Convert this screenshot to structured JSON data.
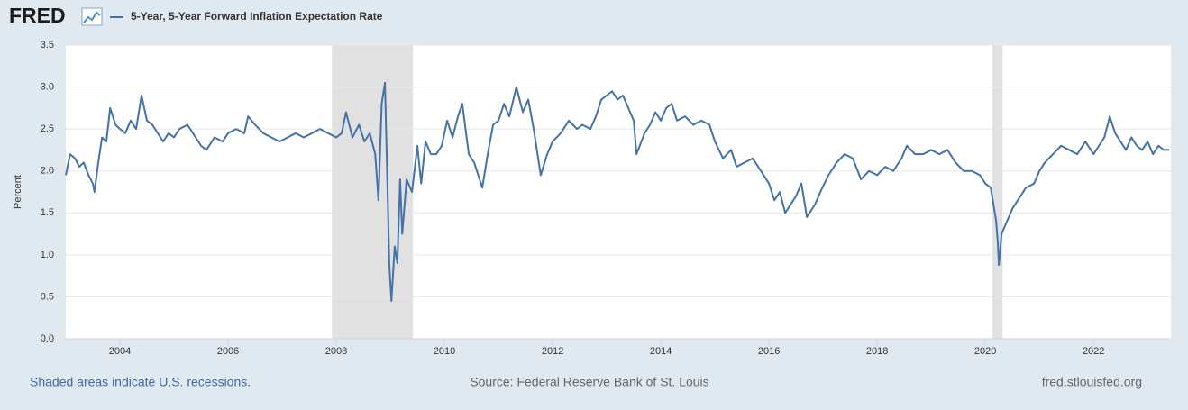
{
  "logo": "FRED",
  "footer": {
    "note": "Shaded areas indicate U.S. recessions.",
    "source": "Source: Federal Reserve Bank of St. Louis",
    "site": "fred.stlouisfed.org"
  },
  "chart_data": {
    "type": "line",
    "ylabel": "Percent",
    "grid": true,
    "recessions": [
      [
        2007.92,
        2009.42
      ],
      [
        2020.13,
        2020.32
      ]
    ],
    "xlim": [
      2003.0,
      2023.43
    ],
    "xticks": [
      2004,
      2006,
      2008,
      2010,
      2012,
      2014,
      2016,
      2018,
      2020,
      2022
    ],
    "ylim": [
      0,
      3.5
    ],
    "yticks": [
      {
        "value": 0,
        "label": "0.0"
      },
      0.5,
      {
        "value": 1,
        "label": "1.0"
      },
      1.5,
      {
        "value": 2,
        "label": "2.0"
      },
      2.5,
      {
        "value": 3,
        "label": "3.0"
      },
      3.5
    ],
    "x": [
      2003.0,
      2003.08,
      2003.17,
      2003.25,
      2003.33,
      2003.42,
      2003.5,
      2003.53,
      2003.6,
      2003.67,
      2003.75,
      2003.82,
      2003.92,
      2004.0,
      2004.1,
      2004.2,
      2004.3,
      2004.4,
      2004.5,
      2004.6,
      2004.7,
      2004.8,
      2004.9,
      2005.0,
      2005.1,
      2005.25,
      2005.35,
      2005.5,
      2005.6,
      2005.75,
      2005.9,
      2006.0,
      2006.15,
      2006.3,
      2006.37,
      2006.5,
      2006.65,
      2006.8,
      2006.95,
      2007.1,
      2007.25,
      2007.4,
      2007.55,
      2007.7,
      2007.85,
      2008.0,
      2008.1,
      2008.18,
      2008.3,
      2008.42,
      2008.52,
      2008.62,
      2008.72,
      2008.78,
      2008.84,
      2008.9,
      2008.94,
      2008.98,
      2009.02,
      2009.08,
      2009.13,
      2009.18,
      2009.22,
      2009.3,
      2009.4,
      2009.5,
      2009.57,
      2009.65,
      2009.75,
      2009.85,
      2009.95,
      2010.05,
      2010.15,
      2010.25,
      2010.33,
      2010.45,
      2010.55,
      2010.7,
      2010.8,
      2010.9,
      2011.0,
      2011.1,
      2011.2,
      2011.33,
      2011.45,
      2011.55,
      2011.65,
      2011.78,
      2011.9,
      2012.0,
      2012.15,
      2012.3,
      2012.45,
      2012.55,
      2012.7,
      2012.8,
      2012.9,
      2013.0,
      2013.1,
      2013.2,
      2013.3,
      2013.4,
      2013.5,
      2013.55,
      2013.7,
      2013.8,
      2013.9,
      2014.0,
      2014.1,
      2014.2,
      2014.3,
      2014.45,
      2014.6,
      2014.75,
      2014.9,
      2015.0,
      2015.15,
      2015.3,
      2015.4,
      2015.55,
      2015.7,
      2015.85,
      2016.0,
      2016.1,
      2016.2,
      2016.3,
      2016.4,
      2016.5,
      2016.6,
      2016.7,
      2016.85,
      2016.95,
      2017.1,
      2017.25,
      2017.4,
      2017.55,
      2017.7,
      2017.85,
      2018.0,
      2018.15,
      2018.3,
      2018.45,
      2018.55,
      2018.7,
      2018.85,
      2019.0,
      2019.15,
      2019.3,
      2019.45,
      2019.6,
      2019.75,
      2019.9,
      2020.0,
      2020.1,
      2020.15,
      2020.2,
      2020.23,
      2020.25,
      2020.3,
      2020.4,
      2020.5,
      2020.6,
      2020.75,
      2020.9,
      2021.0,
      2021.1,
      2021.25,
      2021.4,
      2021.55,
      2021.7,
      2021.85,
      2022.0,
      2022.1,
      2022.2,
      2022.3,
      2022.4,
      2022.5,
      2022.6,
      2022.7,
      2022.8,
      2022.9,
      2023.0,
      2023.1,
      2023.2,
      2023.3,
      2023.4
    ],
    "series": [
      {
        "name": "5-Year, 5-Year Forward Inflation Expectation Rate",
        "color": "#4572a7",
        "values": [
          1.95,
          2.2,
          2.15,
          2.05,
          2.1,
          1.95,
          1.85,
          1.75,
          2.1,
          2.4,
          2.35,
          2.75,
          2.55,
          2.5,
          2.45,
          2.6,
          2.5,
          2.9,
          2.6,
          2.55,
          2.45,
          2.35,
          2.45,
          2.4,
          2.5,
          2.55,
          2.45,
          2.3,
          2.25,
          2.4,
          2.35,
          2.45,
          2.5,
          2.45,
          2.65,
          2.55,
          2.45,
          2.4,
          2.35,
          2.4,
          2.45,
          2.4,
          2.45,
          2.5,
          2.45,
          2.4,
          2.45,
          2.7,
          2.4,
          2.55,
          2.35,
          2.45,
          2.2,
          1.65,
          2.8,
          3.05,
          2.0,
          0.9,
          0.45,
          1.1,
          0.9,
          1.9,
          1.25,
          1.9,
          1.75,
          2.3,
          1.85,
          2.35,
          2.2,
          2.2,
          2.3,
          2.6,
          2.4,
          2.65,
          2.8,
          2.2,
          2.1,
          1.8,
          2.2,
          2.55,
          2.6,
          2.8,
          2.65,
          3.0,
          2.7,
          2.85,
          2.5,
          1.95,
          2.2,
          2.35,
          2.45,
          2.6,
          2.5,
          2.55,
          2.5,
          2.65,
          2.85,
          2.9,
          2.95,
          2.85,
          2.9,
          2.75,
          2.6,
          2.2,
          2.45,
          2.55,
          2.7,
          2.6,
          2.75,
          2.8,
          2.6,
          2.65,
          2.55,
          2.6,
          2.55,
          2.35,
          2.15,
          2.25,
          2.05,
          2.1,
          2.15,
          2.0,
          1.85,
          1.65,
          1.75,
          1.5,
          1.6,
          1.7,
          1.85,
          1.45,
          1.6,
          1.75,
          1.95,
          2.1,
          2.2,
          2.15,
          1.9,
          2.0,
          1.95,
          2.05,
          2.0,
          2.15,
          2.3,
          2.2,
          2.2,
          2.25,
          2.2,
          2.25,
          2.1,
          2.0,
          2.0,
          1.95,
          1.85,
          1.8,
          1.6,
          1.4,
          1.15,
          0.88,
          1.25,
          1.4,
          1.55,
          1.65,
          1.8,
          1.85,
          2.0,
          2.1,
          2.2,
          2.3,
          2.25,
          2.2,
          2.35,
          2.2,
          2.3,
          2.4,
          2.65,
          2.45,
          2.35,
          2.25,
          2.4,
          2.3,
          2.25,
          2.35,
          2.2,
          2.3,
          2.25,
          2.25
        ]
      }
    ]
  }
}
